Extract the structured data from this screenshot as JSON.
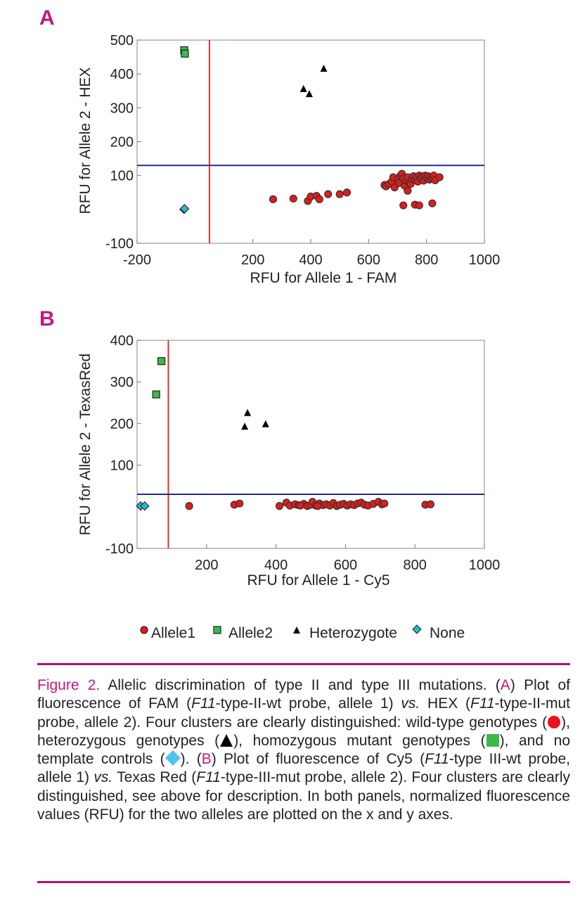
{
  "chart_data": [
    {
      "type": "scatter",
      "panel_label": "A",
      "xlabel": "RFU for Allele 1 - FAM",
      "ylabel": "RFU for Allele 2 - HEX",
      "xlim": [
        -200,
        1000
      ],
      "ylim": [
        -100,
        500
      ],
      "xticks": [
        -200,
        200,
        400,
        600,
        800,
        1000
      ],
      "yticks": [
        -100,
        100,
        200,
        300,
        400,
        500
      ],
      "grid": false,
      "vline": 50,
      "hline": 130,
      "series": [
        {
          "name": "Allele1",
          "marker": "circle",
          "color": "#e01b1b",
          "points": [
            [
              270,
              30
            ],
            [
              340,
              32
            ],
            [
              390,
              25
            ],
            [
              400,
              38
            ],
            [
              420,
              40
            ],
            [
              430,
              30
            ],
            [
              460,
              45
            ],
            [
              500,
              45
            ],
            [
              525,
              50
            ],
            [
              655,
              72
            ],
            [
              660,
              68
            ],
            [
              670,
              75
            ],
            [
              680,
              82
            ],
            [
              685,
              95
            ],
            [
              690,
              65
            ],
            [
              700,
              88
            ],
            [
              705,
              78
            ],
            [
              710,
              100
            ],
            [
              715,
              105
            ],
            [
              720,
              92
            ],
            [
              725,
              70
            ],
            [
              730,
              85
            ],
            [
              735,
              95
            ],
            [
              740,
              80
            ],
            [
              745,
              75
            ],
            [
              750,
              90
            ],
            [
              755,
              98
            ],
            [
              760,
              88
            ],
            [
              765,
              95
            ],
            [
              770,
              82
            ],
            [
              775,
              100
            ],
            [
              780,
              92
            ],
            [
              785,
              97
            ],
            [
              790,
              85
            ],
            [
              795,
              100
            ],
            [
              800,
              93
            ],
            [
              805,
              98
            ],
            [
              810,
              88
            ],
            [
              815,
              95
            ],
            [
              820,
              90
            ],
            [
              825,
              100
            ],
            [
              830,
              86
            ],
            [
              845,
              95
            ],
            [
              735,
              55
            ],
            [
              720,
              12
            ],
            [
              760,
              14
            ],
            [
              775,
              12
            ],
            [
              820,
              18
            ]
          ]
        },
        {
          "name": "Allele2",
          "marker": "square",
          "color": "#3db84a",
          "points": [
            [
              -37,
              470
            ],
            [
              -35,
              460
            ]
          ]
        },
        {
          "name": "Heterozygote",
          "marker": "triangle",
          "color": "#000000",
          "points": [
            [
              375,
              355
            ],
            [
              395,
              340
            ],
            [
              445,
              415
            ]
          ]
        },
        {
          "name": "None",
          "marker": "diamond",
          "color": "#2bb7c9",
          "points": [
            [
              -38,
              0
            ],
            [
              -36,
              2
            ]
          ]
        }
      ]
    },
    {
      "type": "scatter",
      "panel_label": "B",
      "xlabel": "RFU for Allele 1 - Cy5",
      "ylabel": "RFU for Allele 2 - TexasRed",
      "xlim": [
        0,
        1000
      ],
      "ylim": [
        -100,
        400
      ],
      "xticks": [
        200,
        400,
        600,
        800,
        1000
      ],
      "yticks": [
        -100,
        100,
        200,
        300,
        400
      ],
      "grid": false,
      "vline": 90,
      "hline": 30,
      "series": [
        {
          "name": "Allele1",
          "marker": "circle",
          "color": "#e01b1b",
          "points": [
            [
              150,
              2
            ],
            [
              280,
              5
            ],
            [
              295,
              8
            ],
            [
              410,
              2
            ],
            [
              430,
              10
            ],
            [
              440,
              3
            ],
            [
              455,
              6
            ],
            [
              465,
              4
            ],
            [
              480,
              7
            ],
            [
              490,
              2
            ],
            [
              500,
              5
            ],
            [
              505,
              12
            ],
            [
              515,
              3
            ],
            [
              525,
              8
            ],
            [
              535,
              4
            ],
            [
              545,
              6
            ],
            [
              555,
              3
            ],
            [
              565,
              9
            ],
            [
              575,
              2
            ],
            [
              585,
              5
            ],
            [
              595,
              7
            ],
            [
              605,
              3
            ],
            [
              615,
              6
            ],
            [
              625,
              4
            ],
            [
              635,
              8
            ],
            [
              645,
              10
            ],
            [
              655,
              5
            ],
            [
              665,
              3
            ],
            [
              680,
              7
            ],
            [
              695,
              12
            ],
            [
              705,
              6
            ],
            [
              712,
              8
            ],
            [
              830,
              5
            ],
            [
              845,
              6
            ],
            [
              470,
              3
            ],
            [
              520,
              2
            ]
          ]
        },
        {
          "name": "Allele2",
          "marker": "square",
          "color": "#3db84a",
          "points": [
            [
              55,
              270
            ],
            [
              70,
              350
            ]
          ]
        },
        {
          "name": "Heterozygote",
          "marker": "triangle",
          "color": "#000000",
          "points": [
            [
              310,
              192
            ],
            [
              318,
              225
            ],
            [
              370,
              198
            ]
          ]
        },
        {
          "name": "None",
          "marker": "diamond",
          "color": "#2bb7c9",
          "points": [
            [
              10,
              2
            ],
            [
              22,
              2
            ]
          ]
        }
      ]
    }
  ],
  "legend": {
    "placement": "bottom",
    "items": [
      "Allele1",
      "Allele2",
      "Heterozygote",
      "None"
    ]
  },
  "caption": {
    "figure_label": "Figure 2.",
    "title": "Allelic discrimination of type II and type III mutations.",
    "label_a": "A",
    "label_b": "B",
    "text_a1": "Plot of fluorescence of FAM (",
    "gene_a1": "F11",
    "text_a2": "-type-II-wt probe, allele 1) ",
    "vs_a": "vs.",
    "text_a3": " HEX (",
    "gene_a2": "F11",
    "text_a4": "-type-II-mut probe, allele 2). Four clusters are clearly distinguished: wild-type genotypes (",
    "text_a5": "), heterozygous genotypes (",
    "text_a6": "), homozygous mutant genotypes (",
    "text_a7": "), and no template controls (",
    "text_a8": ").",
    "text_b1": "Plot of fluorescence of Cy5 (",
    "gene_b1": "F11",
    "text_b2": "-type III-wt probe, allele 1) ",
    "vs_b": "vs.",
    "text_b3": " Texas Red (",
    "gene_b2": "F11",
    "text_b4": "-type-III-mut probe, allele 2). Four clusters are clearly distinguished, see above for description. In both panels, normalized fluorescence values (RFU) for the two alleles are plotted on the x and y axes."
  }
}
